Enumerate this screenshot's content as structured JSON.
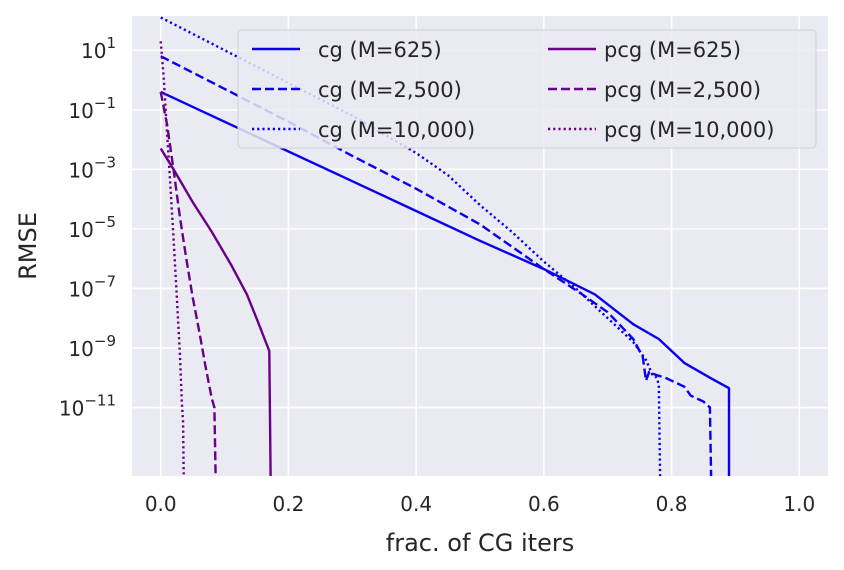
{
  "chart_data": {
    "type": "line",
    "title": "",
    "xlabel": "frac. of CG iters",
    "ylabel": "RMSE",
    "yscale": "log",
    "xlim": [
      -0.045,
      1.045
    ],
    "ylog_range": [
      -13.3,
      2.15
    ],
    "xticks": [
      0.0,
      0.2,
      0.4,
      0.6,
      0.8,
      1.0
    ],
    "xtick_labels": [
      "0.0",
      "0.2",
      "0.4",
      "0.6",
      "0.8",
      "1.0"
    ],
    "yticks_exp": [
      1,
      -1,
      -3,
      -5,
      -7,
      -9,
      -11
    ],
    "ytick_base": "10",
    "ytick_exponents": [
      "1",
      "−1",
      "−3",
      "−5",
      "−7",
      "−9",
      "−11"
    ],
    "grid": true,
    "legend_position": "top-right",
    "legend_columns": 2,
    "colors": {
      "cg": "#0a00f0",
      "pcg": "#6a0088",
      "background": "#eaeaf2",
      "grid": "#ffffff"
    },
    "series": [
      {
        "name": "cg (M=625)",
        "color": "#0a00f0",
        "dash": "solid",
        "points": [
          [
            0.0,
            -0.4
          ],
          [
            0.07,
            -1.1
          ],
          [
            0.15,
            -1.9
          ],
          [
            0.3,
            -3.4
          ],
          [
            0.4,
            -4.4
          ],
          [
            0.5,
            -5.4
          ],
          [
            0.6,
            -6.35
          ],
          [
            0.68,
            -7.2
          ],
          [
            0.74,
            -8.2
          ],
          [
            0.78,
            -8.7
          ],
          [
            0.82,
            -9.5
          ],
          [
            0.86,
            -10.0
          ],
          [
            0.89,
            -10.35
          ],
          [
            0.89,
            -13.3
          ]
        ]
      },
      {
        "name": "cg (M=2,500)",
        "color": "#0a00f0",
        "dash": "dashed",
        "points": [
          [
            0.0,
            0.8
          ],
          [
            0.1,
            -0.3
          ],
          [
            0.2,
            -1.4
          ],
          [
            0.3,
            -2.55
          ],
          [
            0.4,
            -3.65
          ],
          [
            0.5,
            -4.85
          ],
          [
            0.55,
            -5.6
          ],
          [
            0.6,
            -6.35
          ],
          [
            0.66,
            -7.2
          ],
          [
            0.7,
            -7.8
          ],
          [
            0.74,
            -8.7
          ],
          [
            0.755,
            -9.3
          ],
          [
            0.76,
            -10.1
          ],
          [
            0.765,
            -9.8
          ],
          [
            0.775,
            -9.9
          ],
          [
            0.79,
            -10.0
          ],
          [
            0.82,
            -10.3
          ],
          [
            0.83,
            -10.6
          ],
          [
            0.85,
            -10.8
          ],
          [
            0.86,
            -11.0
          ],
          [
            0.862,
            -13.3
          ]
        ]
      },
      {
        "name": "cg (M=10,000)",
        "color": "#0a00f0",
        "dash": "dotted",
        "points": [
          [
            0.0,
            2.1
          ],
          [
            0.1,
            1.0
          ],
          [
            0.2,
            -0.1
          ],
          [
            0.3,
            -1.2
          ],
          [
            0.4,
            -2.45
          ],
          [
            0.45,
            -3.2
          ],
          [
            0.5,
            -4.2
          ],
          [
            0.55,
            -5.1
          ],
          [
            0.6,
            -6.1
          ],
          [
            0.65,
            -7.0
          ],
          [
            0.7,
            -8.0
          ],
          [
            0.74,
            -8.8
          ],
          [
            0.76,
            -9.4
          ],
          [
            0.77,
            -9.9
          ],
          [
            0.775,
            -9.95
          ],
          [
            0.78,
            -10.2
          ],
          [
            0.782,
            -13.3
          ]
        ]
      },
      {
        "name": "pcg (M=625)",
        "color": "#6a0088",
        "dash": "solid",
        "points": [
          [
            0.0,
            -2.3
          ],
          [
            0.02,
            -3.0
          ],
          [
            0.05,
            -4.1
          ],
          [
            0.08,
            -5.1
          ],
          [
            0.11,
            -6.2
          ],
          [
            0.135,
            -7.2
          ],
          [
            0.15,
            -8.0
          ],
          [
            0.17,
            -9.1
          ],
          [
            0.172,
            -13.3
          ]
        ]
      },
      {
        "name": "pcg (M=2,500)",
        "color": "#6a0088",
        "dash": "dashed",
        "points": [
          [
            0.0,
            -0.4
          ],
          [
            0.01,
            -1.5
          ],
          [
            0.02,
            -3.0
          ],
          [
            0.03,
            -4.6
          ],
          [
            0.04,
            -6.0
          ],
          [
            0.05,
            -7.3
          ],
          [
            0.06,
            -8.4
          ],
          [
            0.07,
            -9.6
          ],
          [
            0.08,
            -10.7
          ],
          [
            0.084,
            -11.0
          ],
          [
            0.086,
            -13.3
          ]
        ]
      },
      {
        "name": "pcg (M=10,000)",
        "color": "#6a0088",
        "dash": "dotted",
        "points": [
          [
            0.0,
            1.3
          ],
          [
            0.005,
            0.0
          ],
          [
            0.01,
            -1.8
          ],
          [
            0.015,
            -3.5
          ],
          [
            0.02,
            -5.3
          ],
          [
            0.025,
            -7.2
          ],
          [
            0.03,
            -9.2
          ],
          [
            0.033,
            -10.8
          ],
          [
            0.035,
            -11.5
          ],
          [
            0.036,
            -13.3
          ]
        ]
      }
    ]
  }
}
